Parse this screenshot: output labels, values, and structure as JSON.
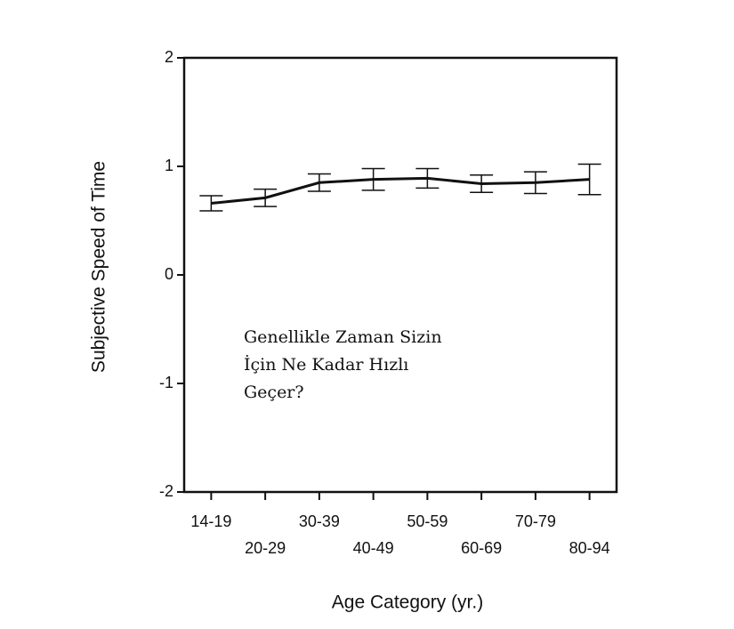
{
  "chart_data": {
    "type": "line",
    "ylabel": "Subjective Speed of Time",
    "xlabel": "Age Category (yr.)",
    "categories": [
      "14-19",
      "20-29",
      "30-39",
      "40-49",
      "50-59",
      "60-69",
      "70-79",
      "80-94"
    ],
    "series": [
      {
        "color": "#111111",
        "values": [
          0.66,
          0.71,
          0.85,
          0.88,
          0.89,
          0.84,
          0.85,
          0.88
        ],
        "errors": [
          0.07,
          0.08,
          0.08,
          0.1,
          0.09,
          0.08,
          0.1,
          0.14
        ]
      }
    ],
    "ylim": [
      -2,
      2
    ],
    "yticks": [
      -2,
      -1,
      0,
      1,
      2
    ],
    "annotation": [
      "Genellikle Zaman Sizin",
      "İçin Ne Kadar Hızlı",
      "Geçer?"
    ]
  }
}
